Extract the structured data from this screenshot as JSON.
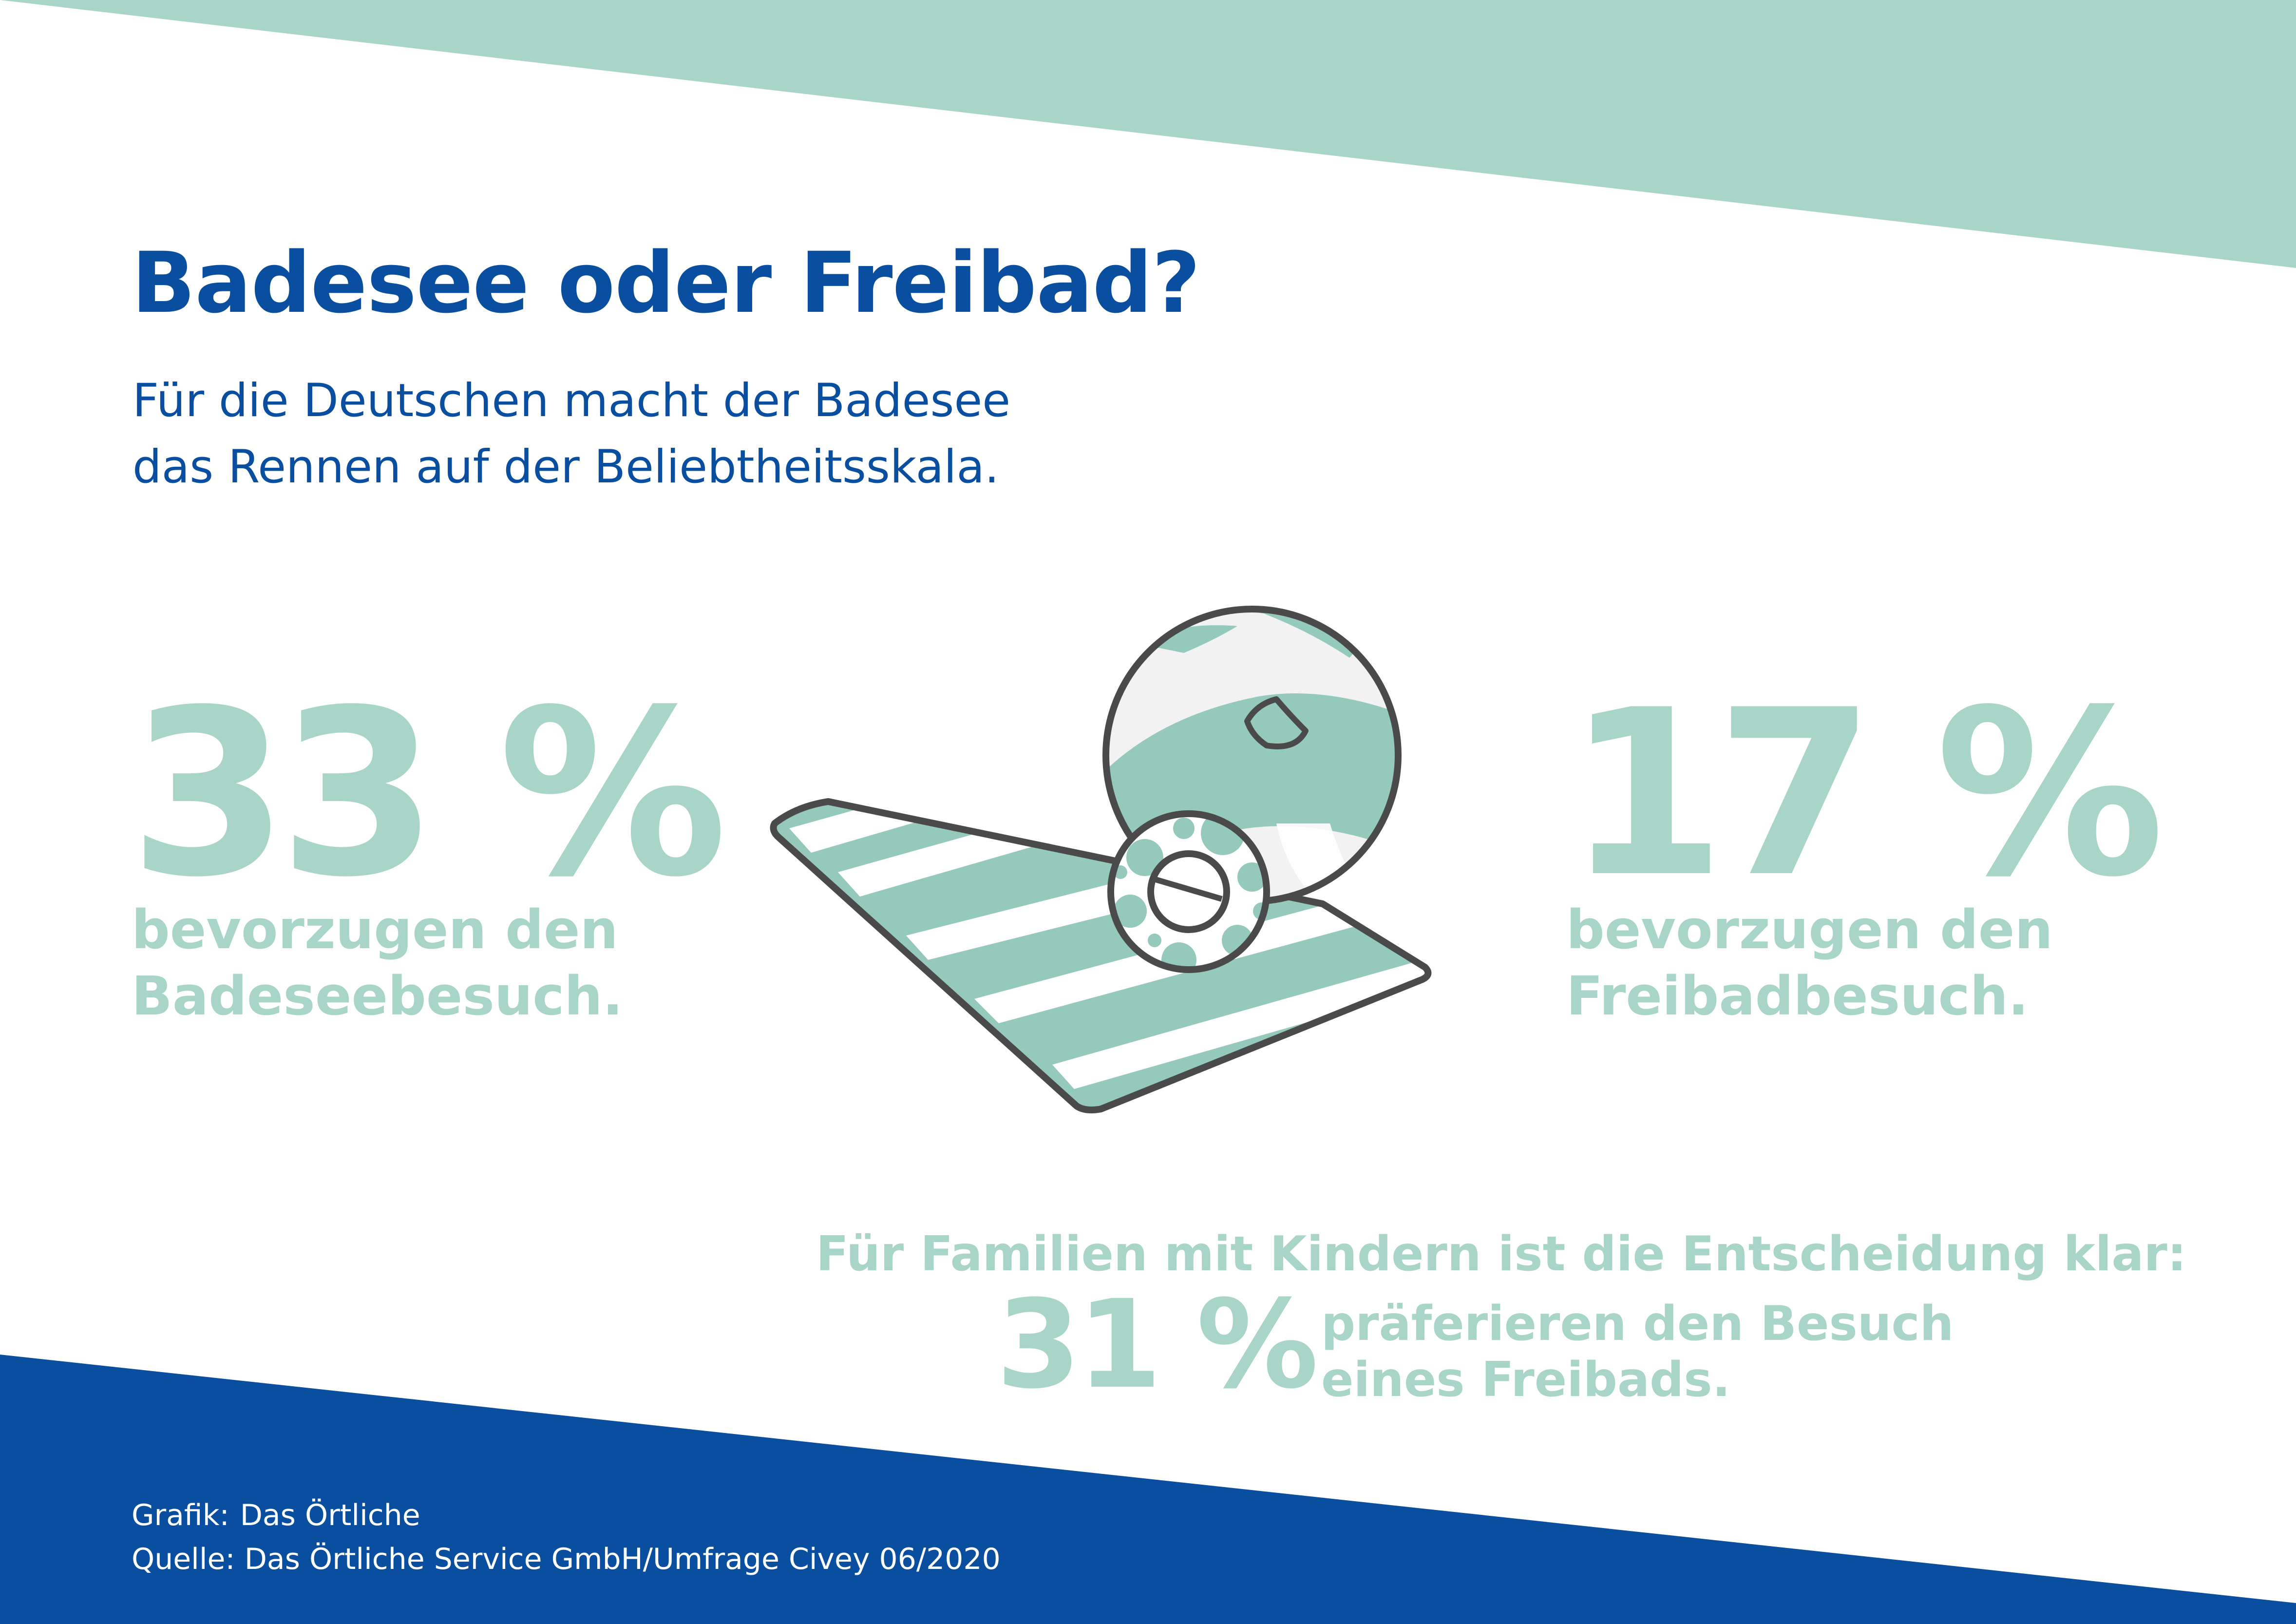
{
  "colors": {
    "brand_blue": "#0a4f9f",
    "mint": "#a9d5c9",
    "mint_dark": "#95c9bb",
    "outline": "#4a4a4a",
    "ball_white": "#f2f2f2",
    "footer_text": "#ffffff"
  },
  "header": {
    "title": "Badesee oder Freibad?",
    "subtitle_line1": "Für die Deutschen macht der Badesee",
    "subtitle_line2": "das Rennen auf der Beliebtheitsskala."
  },
  "stats": {
    "left": {
      "value": "33 %",
      "caption_line1": "bevorzugen den",
      "caption_line2": "Badeseebesuch."
    },
    "right": {
      "value": "17 %",
      "caption_line1": "bevorzugen den",
      "caption_line2": "Freibadbesuch."
    }
  },
  "family": {
    "headline": "Für Familien mit Kindern ist die Entscheidung klar:",
    "value": "31 %",
    "caption_line1": "präferieren den Besuch",
    "caption_line2": "eines Freibads."
  },
  "footer": {
    "grafik_label": "Grafik:",
    "grafik_value": "Das Örtliche",
    "quelle_label": "Quelle:",
    "quelle_value": "Das Örtliche Service GmbH/Umfrage Civey 06/2020"
  },
  "illustration": {
    "icons": [
      "beach-towel-icon",
      "beach-ball-icon",
      "swim-ring-icon"
    ]
  }
}
